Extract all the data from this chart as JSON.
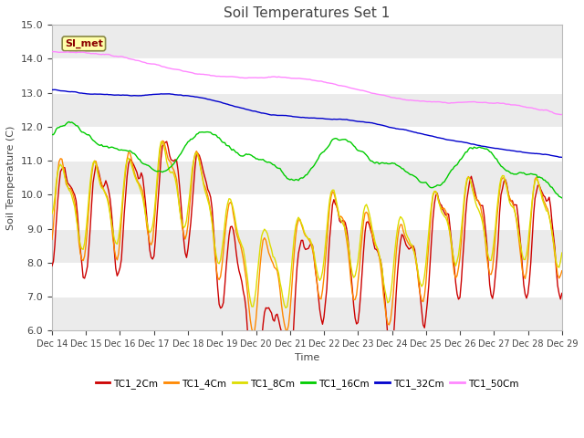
{
  "title": "Soil Temperatures Set 1",
  "xlabel": "Time",
  "ylabel": "Soil Temperature (C)",
  "ylim": [
    6.0,
    15.0
  ],
  "yticks": [
    6.0,
    7.0,
    8.0,
    9.0,
    10.0,
    11.0,
    12.0,
    13.0,
    14.0,
    15.0
  ],
  "annotation": "SI_met",
  "series_colors": {
    "TC1_2Cm": "#cc0000",
    "TC1_4Cm": "#ff8800",
    "TC1_8Cm": "#dddd00",
    "TC1_16Cm": "#00cc00",
    "TC1_32Cm": "#0000cc",
    "TC1_50Cm": "#ff88ff"
  },
  "legend_colors": [
    "#cc0000",
    "#ff8800",
    "#dddd00",
    "#00cc00",
    "#0000cc",
    "#ff88ff"
  ],
  "legend_labels": [
    "TC1_2Cm",
    "TC1_4Cm",
    "TC1_8Cm",
    "TC1_16Cm",
    "TC1_32Cm",
    "TC1_50Cm"
  ],
  "fig_bg": "#ffffff",
  "plot_bg": "#ffffff",
  "grid_color": "#dddddd",
  "band_color": "#ebebeb"
}
